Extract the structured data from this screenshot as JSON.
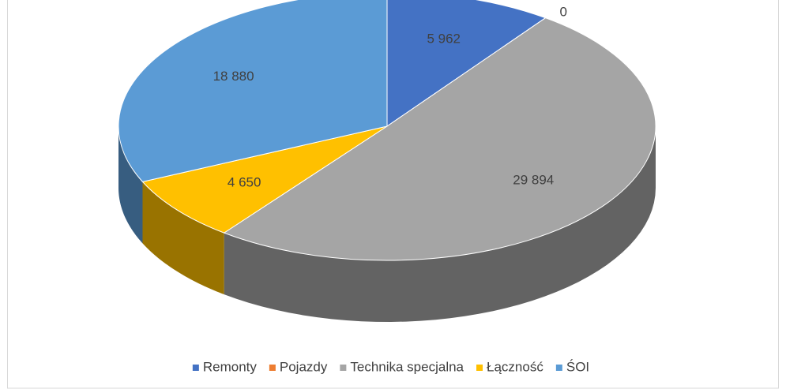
{
  "chart_data": {
    "type": "pie3d",
    "categories": [
      "Remonty",
      "Pojazdy",
      "Technika specjalna",
      "Łączność",
      "ŚOI"
    ],
    "values": [
      5962,
      0,
      29894,
      4650,
      18880
    ],
    "value_labels": [
      "5 962",
      "0",
      "29 894",
      "4 650",
      "18 880"
    ],
    "colors": [
      "#4472c4",
      "#ed7d31",
      "#a5a5a5",
      "#ffc000",
      "#5b9bd5"
    ],
    "legend": "bottom"
  }
}
